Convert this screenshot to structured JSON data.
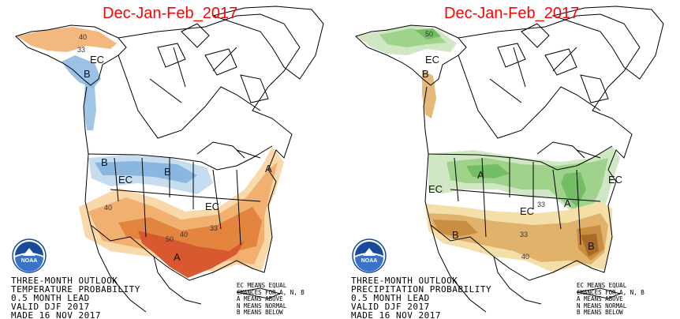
{
  "colors": {
    "above_light": "#f9d8aa",
    "above_mid": "#f2b070",
    "above_strong": "#e4853f",
    "above_max": "#d8582f",
    "below_light": "#c6ddf0",
    "below_mid": "#8ab7e0",
    "wet_light": "#cfe8c3",
    "wet_mid": "#9fd38c",
    "wet_strong": "#74bd64",
    "dry_light": "#f4dfa8",
    "dry_mid": "#e1b26b",
    "dry_strong": "#c98e3f",
    "dry_max": "#a86a2b",
    "title_red": "#ff0000",
    "noaa_blue": "#1a4a9c"
  },
  "left": {
    "title": "Dec-Jan-Feb_2017",
    "caption": [
      "THREE-MONTH OUTLOOK",
      "TEMPERATURE PROBABILITY",
      "0.5 MONTH LEAD",
      "VALID DJF 2017",
      "MADE 16 NOV 2017"
    ],
    "legend": [
      "EC MEANS EQUAL",
      "CHANCES FOR A, N, B",
      "A MEANS ABOVE",
      "N MEANS NORMAL",
      "B MEANS BELOW"
    ],
    "labels": {
      "ec_alaska": "EC",
      "b_alaska": "B",
      "b_nw": "B",
      "b_north": "B",
      "ec_west": "EC",
      "ec_east": "EC",
      "a_ne": "A",
      "a_south": "A",
      "c40_ak": "40",
      "c33_ak": "33",
      "c40_sw": "40",
      "c50": "50",
      "c40_s": "40",
      "c33_e": "33"
    },
    "logo": "NOAA"
  },
  "right": {
    "title": "Dec-Jan-Feb_2017",
    "caption": [
      "THREE-MONTH OUTLOOK",
      "PRECIPITATION PROBABILITY",
      "0.5 MONTH LEAD",
      "VALID DJF 2017",
      "MADE 16 NOV 2017"
    ],
    "legend": [
      "EC MEANS EQUAL",
      "CHANCES FOR A, N, B",
      "A MEANS ABOVE",
      "N MEANS NORMAL",
      "B MEANS BELOW"
    ],
    "labels": {
      "ec_alaska": "EC",
      "b_west": "B",
      "ec_west": "EC",
      "a_north": "A",
      "a_ohio": "A",
      "ec_center": "EC",
      "ec_ne": "EC",
      "b_sw": "B",
      "b_se": "B",
      "c50_ak": "50",
      "c33_c": "33",
      "c33_s": "33",
      "c40_s": "40"
    },
    "logo": "NOAA"
  }
}
